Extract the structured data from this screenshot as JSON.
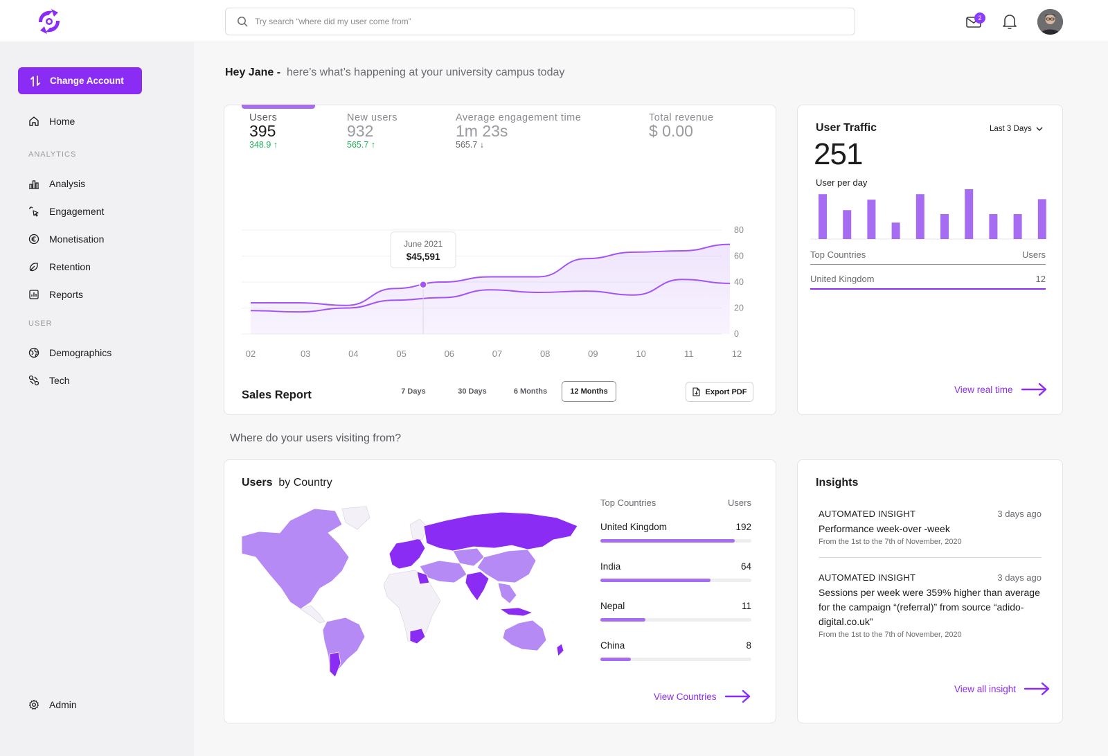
{
  "search": {
    "placeholder": "Try search “where did my user come from”"
  },
  "header": {
    "mail_badge": "2"
  },
  "sidebar": {
    "change_account": "Change Account",
    "home": "Home",
    "analytics_label": "ANALYTICS",
    "analytics_items": [
      "Analysis",
      "Engagement",
      "Monetisation",
      "Retention",
      "Reports"
    ],
    "user_label": "USER",
    "user_items": [
      "Demographics",
      "Tech"
    ],
    "admin": "Admin"
  },
  "greeting": {
    "name": "Hey Jane -",
    "text": "here’s what’s happening at your university campus today"
  },
  "sales": {
    "metrics": [
      {
        "label": "Users",
        "value": "395",
        "delta": "348.9 ↑"
      },
      {
        "label": "New users",
        "value": "932",
        "delta": "565.7 ↑"
      },
      {
        "label": "Average engagement time",
        "value": "1m 23s",
        "delta": "565.7 ↓"
      },
      {
        "label": "Total revenue",
        "value": "$ 0.00"
      }
    ],
    "tooltip": {
      "label": "June 2021",
      "value": "$45,591"
    },
    "title": "Sales Report",
    "ranges": [
      "7 Days",
      "30 Days",
      "6 Months",
      "12 Months"
    ],
    "selected_range": "12 Months",
    "export": "Export PDF"
  },
  "chart_data": {
    "type": "area",
    "x": [
      "02",
      "03",
      "04",
      "05",
      "06",
      "07",
      "08",
      "09",
      "10",
      "11",
      "12"
    ],
    "ylim": [
      0,
      80
    ],
    "yticks": [
      "80",
      "60",
      "40",
      "20",
      "0"
    ],
    "series": [
      {
        "values": [
          24,
          24,
          22,
          35,
          40,
          44,
          44,
          58,
          63,
          64,
          69
        ]
      },
      {
        "values": [
          18,
          17,
          20,
          26,
          28,
          34,
          32,
          33,
          30,
          42,
          39
        ]
      }
    ]
  },
  "traffic": {
    "title": "User Traffic",
    "range": "Last 3 Days",
    "value": "251",
    "subtitle": "User per day",
    "bars": [
      90,
      58,
      79,
      33,
      90,
      50,
      100,
      50,
      50,
      80
    ],
    "table_head": [
      "Top Countries",
      "Users"
    ],
    "row": [
      "United Kingdom",
      "12"
    ],
    "link": "View real time"
  },
  "where": "Where do your  users visiting from?",
  "countries": {
    "title_bold": "Users",
    "title_rest": "by Country",
    "head": [
      "Top Countries",
      "Users"
    ],
    "rows": [
      {
        "name": "United Kingdom",
        "users": "192",
        "fraction": 0.89
      },
      {
        "name": "India",
        "users": "64",
        "fraction": 0.73
      },
      {
        "name": "Nepal",
        "users": "11",
        "fraction": 0.3
      },
      {
        "name": "China",
        "users": "8",
        "fraction": 0.2
      }
    ],
    "link": "View Countries"
  },
  "insights": {
    "title": "Insights",
    "items": [
      {
        "tag": "AUTOMATED INSIGHT",
        "ago": "3 days ago",
        "body": "Performance week-over -week",
        "sub": "From the 1st to the 7th of November, 2020"
      },
      {
        "tag": "AUTOMATED INSIGHT",
        "ago": "3 days ago",
        "body": "Sessions per week were 359% higher than average for the campaign “(referral)” from source “adido-digital.co.uk”",
        "sub": "From the 1st to the 7th of November, 2020"
      }
    ],
    "link": "View all insight"
  },
  "colors": {
    "accent": "#8b2cf5",
    "bar": "#a66df3",
    "up": "#22b25a"
  }
}
